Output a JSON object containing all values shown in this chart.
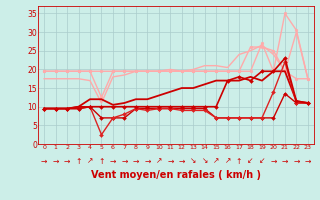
{
  "x": [
    0,
    1,
    2,
    3,
    4,
    5,
    6,
    7,
    8,
    9,
    10,
    11,
    12,
    13,
    14,
    15,
    16,
    17,
    18,
    19,
    20,
    21,
    22,
    23
  ],
  "background_color": "#cceee8",
  "grid_color": "#aacccc",
  "xlabel": "Vent moyen/en rafales ( km/h )",
  "xlabel_color": "#cc0000",
  "xlabel_fontsize": 7,
  "tick_color": "#cc0000",
  "ylim": [
    0,
    37
  ],
  "yticks": [
    0,
    5,
    10,
    15,
    20,
    25,
    30,
    35
  ],
  "lines": [
    {
      "y": [
        19.5,
        19.5,
        19.5,
        19.5,
        19.5,
        12.5,
        19.5,
        19.5,
        19.5,
        19.5,
        19.5,
        19.5,
        19.5,
        19.5,
        19.5,
        19.5,
        19.5,
        19.5,
        19.5,
        27,
        19.5,
        35,
        30.5,
        17.5
      ],
      "color": "#ffaaaa",
      "linewidth": 1.0,
      "marker": "o",
      "markersize": 2.0,
      "zorder": 2
    },
    {
      "y": [
        19.5,
        19.5,
        19.5,
        19.5,
        19.5,
        19.5,
        19.5,
        19.5,
        19.5,
        19.5,
        19.5,
        19.5,
        19.5,
        19.5,
        19.5,
        19.5,
        19.5,
        19.5,
        26,
        26,
        25,
        19.5,
        17.5,
        17.5
      ],
      "color": "#ffaaaa",
      "linewidth": 1.0,
      "marker": "o",
      "markersize": 2.0,
      "zorder": 2
    },
    {
      "y": [
        17.5,
        17.5,
        17.5,
        17.5,
        17.0,
        11.0,
        18,
        18.5,
        19.5,
        19.5,
        19.5,
        20,
        19.5,
        20,
        21,
        21,
        20.5,
        24,
        25,
        26.5,
        24,
        19.5,
        30,
        17.5
      ],
      "color": "#ffaaaa",
      "linewidth": 1.0,
      "marker": null,
      "markersize": 0,
      "zorder": 2
    },
    {
      "y": [
        9.5,
        9.5,
        9.5,
        10,
        12,
        12,
        10.5,
        11,
        12,
        12,
        13,
        14,
        15,
        15,
        16,
        17,
        17,
        17,
        18,
        17,
        19.5,
        19.5,
        11.5,
        11
      ],
      "color": "#cc0000",
      "linewidth": 1.3,
      "marker": null,
      "markersize": 0,
      "zorder": 3
    },
    {
      "y": [
        9.5,
        9.5,
        9.5,
        9.5,
        10,
        10,
        10,
        10,
        10,
        10,
        10,
        10,
        10,
        10,
        10,
        10,
        17,
        18,
        17,
        19.5,
        19.5,
        23,
        11.5,
        11
      ],
      "color": "#cc0000",
      "linewidth": 1.2,
      "marker": "D",
      "markersize": 2.0,
      "zorder": 5
    },
    {
      "y": [
        9.5,
        9.5,
        9.5,
        10,
        10,
        7,
        7,
        7,
        9.5,
        9.5,
        9.5,
        9.5,
        9.5,
        9.5,
        9.5,
        7,
        7,
        7,
        7,
        7,
        7,
        13.5,
        11,
        11
      ],
      "color": "#cc0000",
      "linewidth": 1.0,
      "marker": "D",
      "markersize": 2.0,
      "zorder": 4
    },
    {
      "y": [
        9.5,
        9.5,
        9.5,
        9.5,
        10,
        2.5,
        7,
        8,
        9.5,
        9,
        9.5,
        9.5,
        9,
        9,
        9,
        7,
        7,
        7,
        7,
        7,
        14,
        22,
        11,
        11
      ],
      "color": "#dd2222",
      "linewidth": 1.0,
      "marker": "D",
      "markersize": 2.0,
      "zorder": 4
    }
  ],
  "wind_arrows": [
    "→",
    "→",
    "→",
    "↑",
    "↗",
    "↑",
    "→",
    "→",
    "→",
    "→",
    "↗",
    "→",
    "→",
    "↘",
    "↘",
    "↗",
    "↗",
    "↑",
    "↙",
    "↙",
    "→",
    "→",
    "→",
    "→"
  ],
  "arrow_color": "#cc0000",
  "arrow_fontsize": 5.5
}
